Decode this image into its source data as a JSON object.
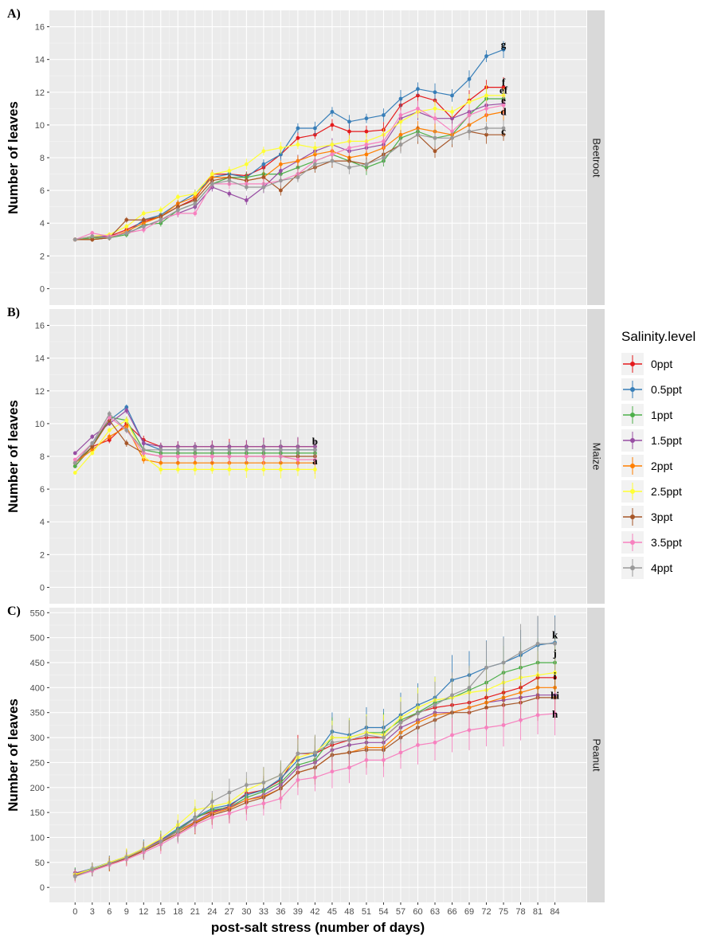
{
  "chart_data": {
    "type": "line",
    "xlabel": "post-salt stress (number of days)",
    "x_ticks": [
      0,
      3,
      6,
      9,
      12,
      15,
      18,
      21,
      24,
      27,
      30,
      33,
      36,
      39,
      42,
      45,
      48,
      51,
      54,
      57,
      60,
      63,
      66,
      69,
      72,
      75,
      78,
      81,
      84
    ],
    "ylabel": "Number of leaves",
    "legend": {
      "title": "Salinity.level",
      "placement": "right",
      "items": [
        {
          "label": "0ppt",
          "color": "#E41A1C"
        },
        {
          "label": "0.5ppt",
          "color": "#377EB8"
        },
        {
          "label": "1ppt",
          "color": "#4DAF4A"
        },
        {
          "label": "1.5ppt",
          "color": "#984EA3"
        },
        {
          "label": "2ppt",
          "color": "#FF7F00"
        },
        {
          "label": "2.5ppt",
          "color": "#FFFF33"
        },
        {
          "label": "3ppt",
          "color": "#A65628"
        },
        {
          "label": "3.5ppt",
          "color": "#F781BF"
        },
        {
          "label": "4ppt",
          "color": "#999999"
        }
      ]
    },
    "panels": [
      {
        "label": "A)",
        "strip": "Beetroot",
        "ylim": [
          -1,
          17
        ],
        "y_ticks": [
          0,
          2,
          4,
          6,
          8,
          10,
          12,
          14,
          16
        ],
        "x": [
          0,
          3,
          6,
          9,
          12,
          15,
          18,
          21,
          24,
          27,
          30,
          33,
          36,
          39,
          42,
          45,
          48,
          51,
          54,
          57,
          60,
          63,
          66,
          69,
          72,
          75
        ],
        "series": [
          {
            "name": "0ppt",
            "values": [
              3,
              3.1,
              3.2,
              3.6,
              4.1,
              4.4,
              5,
              5.5,
              7,
              7,
              6.9,
              7.4,
              8.2,
              9.2,
              9.4,
              10,
              9.6,
              9.6,
              9.7,
              11.2,
              11.8,
              11.5,
              10.4,
              11.5,
              12.3,
              12.3
            ]
          },
          {
            "name": "0.5ppt",
            "values": [
              3,
              3,
              3.1,
              3.4,
              4.2,
              4.5,
              5.2,
              5.8,
              6.8,
              7,
              6.8,
              7.6,
              8.2,
              9.8,
              9.8,
              10.8,
              10.2,
              10.4,
              10.6,
              11.6,
              12.2,
              12,
              11.8,
              12.8,
              14.2,
              14.6
            ]
          },
          {
            "name": "1ppt",
            "values": [
              3,
              3.1,
              3.1,
              3.3,
              3.9,
              4,
              4.8,
              5.2,
              6.4,
              6.8,
              6.8,
              7,
              7,
              7.4,
              7.8,
              8.2,
              7.8,
              7.4,
              7.8,
              9.2,
              9.6,
              9.2,
              9.4,
              10.6,
              11.6,
              11.6
            ]
          },
          {
            "name": "1.5ppt",
            "values": [
              3,
              3.2,
              3.2,
              3.4,
              3.8,
              4.2,
              4.6,
              5,
              6.2,
              5.8,
              5.4,
              6.2,
              7.2,
              7.8,
              8.4,
              8.8,
              8.4,
              8.6,
              8.8,
              10.4,
              10.8,
              10.4,
              10.4,
              10.8,
              11.2,
              11.3
            ]
          },
          {
            "name": "2ppt",
            "values": [
              3,
              3,
              3.1,
              3.5,
              4,
              4.4,
              5.2,
              5.6,
              6.8,
              6.8,
              6.6,
              6.8,
              7.6,
              7.8,
              8.2,
              8.4,
              8,
              8.2,
              8.6,
              9.4,
              9.8,
              9.6,
              9.4,
              10,
              10.6,
              10.8
            ]
          },
          {
            "name": "2.5ppt",
            "values": [
              3,
              3.2,
              3.3,
              3.8,
              4.6,
              4.8,
              5.6,
              5.8,
              7,
              7.2,
              7.6,
              8.4,
              8.6,
              8.8,
              8.6,
              8.8,
              9,
              9,
              9.4,
              10.2,
              10.8,
              11,
              10.8,
              11.4,
              11.8,
              11.8
            ]
          },
          {
            "name": "3ppt",
            "values": [
              3,
              3,
              3.1,
              4.2,
              4.2,
              4.4,
              5,
              5.4,
              6.6,
              6.8,
              6.6,
              6.8,
              6,
              7,
              7.4,
              7.8,
              7.8,
              7.6,
              8.2,
              8.8,
              9.4,
              8.4,
              9.2,
              9.6,
              9.4,
              9.4
            ]
          },
          {
            "name": "3.5ppt",
            "values": [
              3,
              3.4,
              3.2,
              3.4,
              3.6,
              4.2,
              4.6,
              4.6,
              6.4,
              6.4,
              6.4,
              6.4,
              6.6,
              7,
              7.8,
              8.2,
              8.6,
              8.8,
              9,
              10.6,
              11,
              10.4,
              9.6,
              10.6,
              11,
              11.2
            ]
          },
          {
            "name": "4ppt",
            "values": [
              3,
              3.2,
              3.1,
              3.4,
              3.8,
              4.2,
              4.8,
              5.2,
              6.4,
              6.6,
              6.2,
              6.2,
              6.6,
              6.8,
              7.6,
              7.8,
              7.4,
              7.6,
              8,
              8.8,
              9.4,
              9.2,
              9.2,
              9.6,
              9.8,
              9.8
            ]
          }
        ],
        "group_letters": [
          {
            "text": "g",
            "x": 75,
            "y": 14.9
          },
          {
            "text": "f",
            "x": 75,
            "y": 12.6
          },
          {
            "text": "ef",
            "x": 75,
            "y": 12.1
          },
          {
            "text": "e",
            "x": 75,
            "y": 11.5
          },
          {
            "text": "d",
            "x": 75,
            "y": 10.8
          },
          {
            "text": "c",
            "x": 75,
            "y": 9.6
          }
        ]
      },
      {
        "label": "B)",
        "strip": "Maize",
        "ylim": [
          -1,
          17
        ],
        "y_ticks": [
          0,
          2,
          4,
          6,
          8,
          10,
          12,
          14,
          16
        ],
        "x": [
          0,
          3,
          6,
          9,
          12,
          15,
          18,
          21,
          24,
          27,
          30,
          33,
          36,
          39,
          42
        ],
        "series": [
          {
            "name": "0ppt",
            "values": [
              7.4,
              8.6,
              9,
              10,
              9,
              8.6,
              8.6,
              8.6,
              8.6,
              8.6,
              8.6,
              8.6,
              8.6,
              8.6,
              8.6
            ]
          },
          {
            "name": "0.5ppt",
            "values": [
              7.6,
              8.8,
              10.2,
              11,
              8.8,
              8.4,
              8.4,
              8.4,
              8.4,
              8.4,
              8.4,
              8.4,
              8.4,
              8.4,
              8.4
            ]
          },
          {
            "name": "1ppt",
            "values": [
              7.4,
              8.6,
              10.4,
              10.2,
              8.4,
              8.2,
              8.2,
              8.2,
              8.2,
              8.2,
              8.2,
              8.2,
              8.2,
              8.2,
              8.2
            ]
          },
          {
            "name": "1.5ppt",
            "values": [
              8.2,
              9.2,
              10,
              10.8,
              8.8,
              8.6,
              8.6,
              8.6,
              8.6,
              8.6,
              8.6,
              8.6,
              8.6,
              8.6,
              8.6
            ]
          },
          {
            "name": "2ppt",
            "values": [
              7.6,
              8.4,
              9.2,
              9.8,
              7.8,
              7.6,
              7.6,
              7.6,
              7.6,
              7.6,
              7.6,
              7.6,
              7.6,
              7.6,
              7.6
            ]
          },
          {
            "name": "2.5ppt",
            "values": [
              7,
              8.2,
              9.6,
              10.2,
              8,
              7.2,
              7.2,
              7.2,
              7.2,
              7.2,
              7.2,
              7.2,
              7.2,
              7.2,
              7.2
            ]
          },
          {
            "name": "3ppt",
            "values": [
              7.6,
              8.6,
              10.2,
              8.8,
              8.2,
              8,
              8,
              8,
              8,
              8,
              8,
              8,
              8,
              8,
              8
            ]
          },
          {
            "name": "3.5ppt",
            "values": [
              7.8,
              8.8,
              10.4,
              9.6,
              8.2,
              8,
              8,
              8,
              8,
              8,
              8,
              8,
              8,
              7.8,
              7.8
            ]
          },
          {
            "name": "4ppt",
            "values": [
              7.6,
              8.8,
              10.6,
              9.6,
              8.4,
              8.4,
              8.4,
              8.4,
              8.4,
              8.4,
              8.4,
              8.4,
              8.4,
              8.4,
              8.4
            ]
          }
        ],
        "group_letters": [
          {
            "text": "b",
            "x": 42,
            "y": 8.9
          },
          {
            "text": "a",
            "x": 42,
            "y": 7.7
          }
        ]
      },
      {
        "label": "C)",
        "strip": "Peanut",
        "ylim": [
          -30,
          560
        ],
        "y_ticks": [
          0,
          50,
          100,
          150,
          200,
          250,
          300,
          350,
          400,
          450,
          500,
          550
        ],
        "x": [
          0,
          3,
          6,
          9,
          12,
          15,
          18,
          21,
          24,
          27,
          30,
          33,
          36,
          39,
          42,
          45,
          48,
          51,
          54,
          57,
          60,
          63,
          66,
          69,
          72,
          75,
          78,
          81,
          84
        ],
        "series": [
          {
            "name": "0ppt",
            "values": [
              25,
              35,
              48,
              60,
              75,
              92,
              115,
              140,
              152,
              162,
              188,
              195,
              215,
              268,
              268,
              285,
              295,
              300,
              300,
              330,
              350,
              360,
              365,
              370,
              380,
              390,
              400,
              420,
              420
            ]
          },
          {
            "name": "0.5ppt",
            "values": [
              28,
              38,
              50,
              62,
              78,
              95,
              118,
              140,
              158,
              165,
              185,
              195,
              218,
              255,
              265,
              312,
              305,
              320,
              320,
              345,
              365,
              380,
              415,
              425,
              440,
              450,
              465,
              485,
              490
            ]
          },
          {
            "name": "1ppt",
            "values": [
              27,
              36,
              48,
              60,
              76,
              94,
              115,
              138,
              155,
              160,
              180,
              192,
              210,
              245,
              255,
              300,
              300,
              310,
              310,
              335,
              350,
              370,
              380,
              395,
              410,
              430,
              440,
              450,
              450
            ]
          },
          {
            "name": "1.5ppt",
            "values": [
              29,
              36,
              48,
              62,
              76,
              95,
              112,
              132,
              150,
              160,
              175,
              185,
              205,
              240,
              250,
              275,
              285,
              290,
              290,
              320,
              335,
              350,
              350,
              360,
              370,
              375,
              380,
              385,
              385
            ]
          },
          {
            "name": "2ppt",
            "values": [
              24,
              35,
              47,
              58,
              74,
              90,
              112,
              130,
              148,
              158,
              175,
              182,
              198,
              230,
              240,
              265,
              270,
              280,
              280,
              310,
              330,
              345,
              350,
              360,
              370,
              380,
              390,
              400,
              400
            ]
          },
          {
            "name": "2.5ppt",
            "values": [
              26,
              37,
              50,
              62,
              78,
              98,
              125,
              155,
              162,
              170,
              195,
              210,
              225,
              260,
              270,
              300,
              300,
              310,
              305,
              340,
              360,
              375,
              380,
              390,
              395,
              410,
              420,
              425,
              430
            ]
          },
          {
            "name": "3ppt",
            "values": [
              23,
              35,
              46,
              58,
              73,
              90,
              108,
              128,
              145,
              155,
              170,
              180,
              198,
              230,
              240,
              265,
              270,
              275,
              275,
              300,
              320,
              335,
              350,
              350,
              360,
              365,
              370,
              380,
              380
            ]
          },
          {
            "name": "3.5ppt",
            "values": [
              22,
              33,
              45,
              56,
              70,
              86,
              105,
              125,
              140,
              148,
              160,
              168,
              178,
              215,
              220,
              232,
              240,
              255,
              255,
              270,
              285,
              290,
              305,
              315,
              320,
              325,
              335,
              345,
              348
            ]
          },
          {
            "name": "4ppt",
            "values": [
              22,
              36,
              48,
              60,
              76,
              92,
              112,
              138,
              172,
              190,
              205,
              210,
              225,
              268,
              270,
              290,
              295,
              305,
              300,
              330,
              348,
              365,
              385,
              400,
              440,
              450,
              470,
              488,
              488
            ]
          }
        ],
        "group_letters": [
          {
            "text": "k",
            "x": 84,
            "y": 505
          },
          {
            "text": "j",
            "x": 84,
            "y": 468
          },
          {
            "text": "i",
            "x": 84,
            "y": 423
          },
          {
            "text": "hi",
            "x": 84,
            "y": 384
          },
          {
            "text": "h",
            "x": 84,
            "y": 346
          }
        ]
      }
    ]
  }
}
